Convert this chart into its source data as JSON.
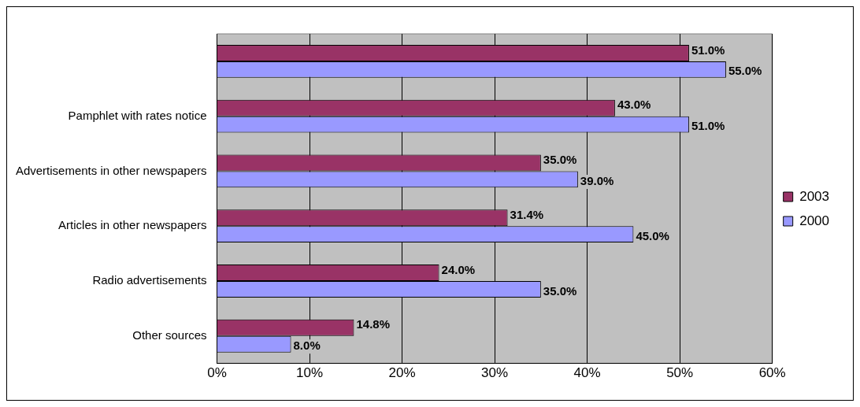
{
  "chart_data": {
    "type": "bar",
    "orientation": "horizontal",
    "categories": [
      null,
      "Pamphlet with rates notice",
      "Advertisements in other newspapers",
      "Articles in other newspapers",
      "Radio advertisements",
      "Other sources"
    ],
    "series": [
      {
        "name": "2003",
        "color": "#993366",
        "values": [
          51,
          43,
          35,
          31.4,
          24,
          14.8
        ],
        "value_labels": [
          "51.0%",
          "43.0%",
          "35.0%",
          "31.4%",
          "24.0%",
          "14.8%"
        ]
      },
      {
        "name": "2000",
        "color": "#9999ff",
        "values": [
          55,
          51,
          39,
          45,
          35,
          8
        ],
        "value_labels": [
          "55.0%",
          "51.0%",
          "39.0%",
          "45.0%",
          "35.0%",
          "8.0%"
        ]
      }
    ],
    "xlim": [
      0,
      60
    ],
    "xticks": [
      {
        "value": 0,
        "label": "0%"
      },
      {
        "value": 10,
        "label": "10%"
      },
      {
        "value": 20,
        "label": "20%"
      },
      {
        "value": 30,
        "label": "30%"
      },
      {
        "value": 40,
        "label": "40%"
      },
      {
        "value": 50,
        "label": "50%"
      },
      {
        "value": 60,
        "label": "60%"
      }
    ],
    "grid": "x",
    "legend": "right"
  }
}
